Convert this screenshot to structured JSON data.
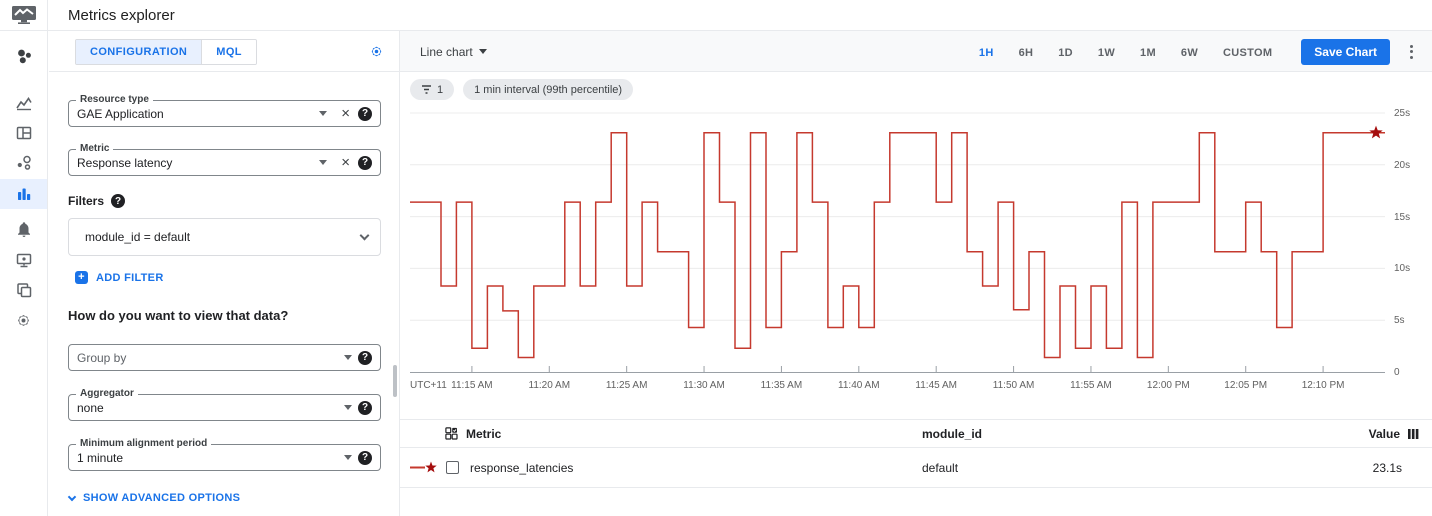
{
  "app_bar": {
    "title": "Metrics explorer"
  },
  "icons": {
    "help": "?",
    "clear": "×",
    "add": "+"
  },
  "nav": {
    "active": "metrics-explorer",
    "items": [
      "overview",
      "metrics",
      "dashboards",
      "services",
      "metrics-explorer",
      "alerting",
      "uptime-checks",
      "groups",
      "settings"
    ]
  },
  "config": {
    "tabs": [
      {
        "label": "CONFIGURATION",
        "active": true
      },
      {
        "label": "MQL",
        "active": false
      }
    ],
    "resource_type": {
      "label": "Resource type",
      "value": "GAE Application"
    },
    "metric": {
      "label": "Metric",
      "value": "Response latency"
    },
    "filters": {
      "label": "Filters",
      "chip": "module_id = default",
      "add_label": "ADD FILTER"
    },
    "view_question": "How do you want to view that data?",
    "group_by": {
      "placeholder": "Group by"
    },
    "aggregator": {
      "label": "Aggregator",
      "value": "none"
    },
    "alignment": {
      "label": "Minimum alignment period",
      "value": "1 minute"
    },
    "show_advanced": "SHOW ADVANCED OPTIONS"
  },
  "toolbar": {
    "chart_type": "Line chart",
    "ranges": [
      "1H",
      "6H",
      "1D",
      "1W",
      "1M",
      "6W",
      "CUSTOM"
    ],
    "active_range": "1H",
    "save_button": "Save Chart"
  },
  "chips": {
    "filter_count": "1",
    "interval": "1 min interval (99th percentile)"
  },
  "chart_data": {
    "type": "line",
    "step": "after",
    "timezone": "UTC+11",
    "x_start": "11:10 AM",
    "x_total_minutes": 63,
    "x_ticks": [
      {
        "label": "11:15 AM",
        "m": 4
      },
      {
        "label": "11:20 AM",
        "m": 9
      },
      {
        "label": "11:25 AM",
        "m": 14
      },
      {
        "label": "11:30 AM",
        "m": 19
      },
      {
        "label": "11:35 AM",
        "m": 24
      },
      {
        "label": "11:40 AM",
        "m": 29
      },
      {
        "label": "11:45 AM",
        "m": 34
      },
      {
        "label": "11:50 AM",
        "m": 39
      },
      {
        "label": "11:55 AM",
        "m": 44
      },
      {
        "label": "12:00 PM",
        "m": 49
      },
      {
        "label": "12:05 PM",
        "m": 54
      },
      {
        "label": "12:10 PM",
        "m": 59
      }
    ],
    "ylim": [
      0,
      25
    ],
    "y_unit": "s",
    "y_ticks": [
      {
        "label": "25s",
        "v": 25
      },
      {
        "label": "20s",
        "v": 20
      },
      {
        "label": "15s",
        "v": 15
      },
      {
        "label": "10s",
        "v": 10
      },
      {
        "label": "5s",
        "v": 5
      },
      {
        "label": "0",
        "v": 0
      }
    ],
    "grid": true,
    "legend_position": "table-below",
    "series": [
      {
        "name": "response_latencies",
        "color": "#c5392e",
        "end_marker": "star",
        "values": [
          16.4,
          16.4,
          8.3,
          16.4,
          2.3,
          8.3,
          5.9,
          1.4,
          8.3,
          8.3,
          16.4,
          8.3,
          16.4,
          23.1,
          8.3,
          16.4,
          11.6,
          11.6,
          4.3,
          23.1,
          16.4,
          2.3,
          23.1,
          4.3,
          11.6,
          23.1,
          16.4,
          4.3,
          8.3,
          4.3,
          16.4,
          23.1,
          23.1,
          23.1,
          16.4,
          23.1,
          11.6,
          8.3,
          16.4,
          6.0,
          11.6,
          1.4,
          8.3,
          2.3,
          8.3,
          2.3,
          16.4,
          1.4,
          16.4,
          16.4,
          16.4,
          23.1,
          11.6,
          11.6,
          16.4,
          11.6,
          4.3,
          11.6,
          11.6,
          23.1,
          23.1,
          23.1,
          23.1
        ]
      }
    ]
  },
  "table": {
    "headers": {
      "metric": "Metric",
      "module_id": "module_id",
      "value": "Value"
    },
    "rows": [
      {
        "metric": "response_latencies",
        "module_id": "default",
        "value": "23.1s",
        "marker": "red-line-star",
        "checked": false
      }
    ]
  },
  "colors": {
    "accent": "#1a73e8",
    "line_red": "#c5392e",
    "star_red": "#a50e0e",
    "chip_bg": "#e8eaed",
    "tab_active_bg": "#e8f0fe",
    "toolbar_bg": "#f8f9fa",
    "border": "#e8eaed",
    "grid": "#ececec",
    "axis": "#9aa0a6",
    "text_primary": "#202124",
    "text_secondary": "#5f6368"
  }
}
